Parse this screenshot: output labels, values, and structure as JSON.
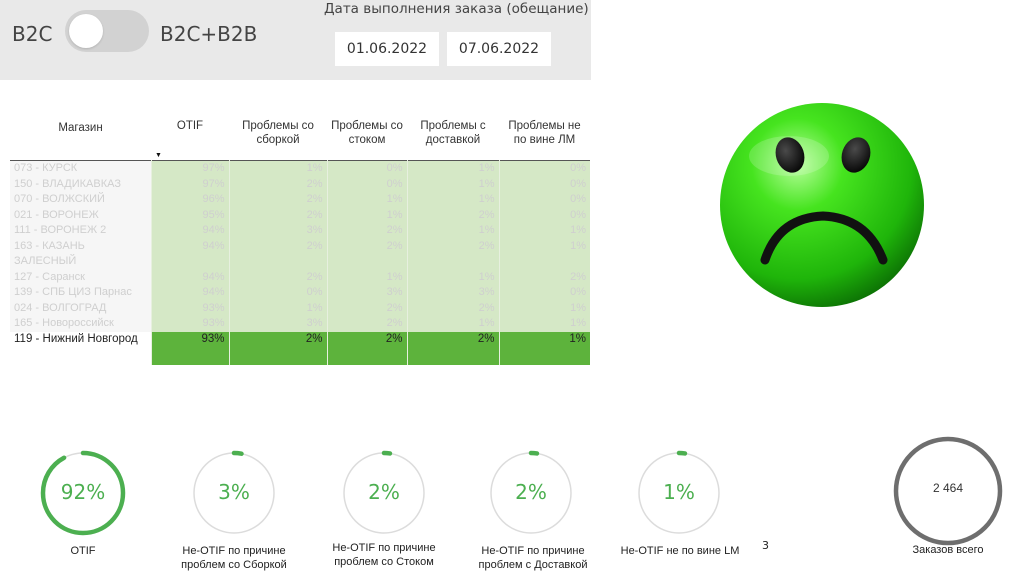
{
  "filters": {
    "left_label": "B2C",
    "right_label": "B2C+B2B",
    "date_title": "Дата выполнения заказа (обещание)",
    "date_from": "01.06.2022",
    "date_to": "07.06.2022"
  },
  "table": {
    "columns": [
      "Магазин",
      "OTIF",
      "Проблемы со сборкой",
      "Проблемы со стоком",
      "Проблемы с доставкой",
      "Проблемы не по вине ЛМ"
    ],
    "rows": [
      {
        "store": "073 - КУРСК",
        "otif": "97%",
        "assembly": "1%",
        "stock": "0%",
        "delivery": "1%",
        "not_lm": "0%"
      },
      {
        "store": "150 - ВЛАДИКАВКАЗ",
        "otif": "97%",
        "assembly": "2%",
        "stock": "0%",
        "delivery": "1%",
        "not_lm": "0%"
      },
      {
        "store": "070 - ВОЛЖСКИЙ",
        "otif": "96%",
        "assembly": "2%",
        "stock": "1%",
        "delivery": "1%",
        "not_lm": "0%"
      },
      {
        "store": "021 - ВОРОНЕЖ",
        "otif": "95%",
        "assembly": "2%",
        "stock": "1%",
        "delivery": "2%",
        "not_lm": "0%"
      },
      {
        "store": "111 - ВОРОНЕЖ 2",
        "otif": "94%",
        "assembly": "3%",
        "stock": "2%",
        "delivery": "1%",
        "not_lm": "1%"
      },
      {
        "store": "163 - КАЗАНЬ ЗАЛЕСНЫЙ",
        "otif": "94%",
        "assembly": "2%",
        "stock": "2%",
        "delivery": "2%",
        "not_lm": "1%"
      },
      {
        "store": "127 - Саранск",
        "otif": "94%",
        "assembly": "2%",
        "stock": "1%",
        "delivery": "1%",
        "not_lm": "2%"
      },
      {
        "store": "139 - СПБ ЦИЗ Парнас",
        "otif": "94%",
        "assembly": "0%",
        "stock": "3%",
        "delivery": "3%",
        "not_lm": "0%"
      },
      {
        "store": "024 - ВОЛГОГРАД",
        "otif": "93%",
        "assembly": "1%",
        "stock": "2%",
        "delivery": "2%",
        "not_lm": "1%"
      },
      {
        "store": "165 - Новороссийск",
        "otif": "93%",
        "assembly": "3%",
        "stock": "2%",
        "delivery": "1%",
        "not_lm": "1%"
      }
    ],
    "highlight": {
      "store": "119 - Нижний Новгород",
      "otif": "93%",
      "assembly": "2%",
      "stock": "2%",
      "delivery": "2%",
      "not_lm": "1%"
    }
  },
  "kpis": [
    {
      "value": "92%",
      "label": "OTIF",
      "fraction": 0.92
    },
    {
      "value": "3%",
      "label": "Не-OTIF по причине проблем со Сборкой",
      "fraction": 0.03
    },
    {
      "value": "2%",
      "label": "Не-OTIF по причине проблем со Стоком",
      "fraction": 0.02
    },
    {
      "value": "2%",
      "label": "Не-OTIF по причине проблем с Доставкой",
      "fraction": 0.02
    },
    {
      "value": "1%",
      "label": "Не-OTIF не по вине LM",
      "fraction": 0.01
    }
  ],
  "orders": {
    "value": "2 464",
    "label": "Заказов всего"
  },
  "page_number": "3",
  "colors": {
    "accent": "#4caf50",
    "highlight_row": "#5db33c",
    "cell_bg": "#d5e8c6",
    "ring_track": "#dcdcdc",
    "orders_ring": "#6e6e6e"
  }
}
